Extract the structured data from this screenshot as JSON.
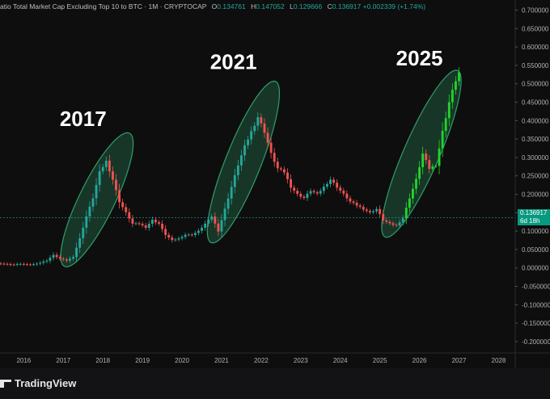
{
  "header": {
    "title": "atio Total Market Cap Excluding Top 10 to BTC · 1M · CRYPTOCAP",
    "open_label": "O",
    "open": "0.134761",
    "high_label": "H",
    "high": "0.147052",
    "low_label": "L",
    "low": "0.129666",
    "close_label": "C",
    "close": "0.136917",
    "change": "+0.002339 (+1.74%)"
  },
  "price_badge": {
    "price": "0.136917",
    "countdown": "6d 18h"
  },
  "brand": {
    "name": "TradingView"
  },
  "colors": {
    "up": "#26a69a",
    "down": "#ef5350",
    "bright_up": "#22d42a",
    "highlight": "#2f9e6a",
    "badge": "#089981"
  },
  "annotations": [
    {
      "label": "2017",
      "year": 2017.5,
      "value": 0.385
    },
    {
      "label": "2021",
      "year": 2021.3,
      "value": 0.54
    },
    {
      "label": "2025",
      "year": 2026.0,
      "value": 0.55
    }
  ],
  "highlight_ellipses": [
    {
      "year_from": 2017.1,
      "year_to": 2018.6,
      "value_from": 0.02,
      "value_to": 0.35
    },
    {
      "year_from": 2020.8,
      "year_to": 2022.3,
      "value_from": 0.085,
      "value_to": 0.49
    },
    {
      "year_from": 2025.2,
      "year_to": 2026.9,
      "value_from": 0.1,
      "value_to": 0.52
    }
  ],
  "chart_data": {
    "type": "candlestick",
    "title": "atio Total Market Cap Excluding Top 10 to BTC",
    "interval": "1M",
    "source": "CRYPTOCAP",
    "x_ticks": [
      "2016",
      "2017",
      "2018",
      "2019",
      "2020",
      "2021",
      "2022",
      "2023",
      "2024",
      "2025",
      "2026",
      "2027",
      "2028"
    ],
    "y_ticks": [
      "0.700000",
      "0.650000",
      "0.600000",
      "0.550000",
      "0.500000",
      "0.450000",
      "0.400000",
      "0.350000",
      "0.300000",
      "0.250000",
      "0.200000",
      "0.150000",
      "0.100000",
      "0.050000",
      "0.000000",
      "-0.050000",
      "-0.100000",
      "-0.150000",
      "-0.200000"
    ],
    "ylim": [
      -0.22,
      0.71
    ],
    "xlim": [
      2015.4,
      2028.4
    ],
    "grid": false,
    "last_price": 0.136917,
    "closes": [
      {
        "t": "2015-06",
        "c": 0.012
      },
      {
        "t": "2015-08",
        "c": 0.01
      },
      {
        "t": "2015-10",
        "c": 0.009
      },
      {
        "t": "2015-12",
        "c": 0.011
      },
      {
        "t": "2016-02",
        "c": 0.009
      },
      {
        "t": "2016-04",
        "c": 0.01
      },
      {
        "t": "2016-06",
        "c": 0.014
      },
      {
        "t": "2016-08",
        "c": 0.02
      },
      {
        "t": "2016-10",
        "c": 0.035
      },
      {
        "t": "2016-12",
        "c": 0.025
      },
      {
        "t": "2017-02",
        "c": 0.02
      },
      {
        "t": "2017-04",
        "c": 0.03
      },
      {
        "t": "2017-06",
        "c": 0.08
      },
      {
        "t": "2017-08",
        "c": 0.14
      },
      {
        "t": "2017-10",
        "c": 0.19
      },
      {
        "t": "2017-12",
        "c": 0.26
      },
      {
        "t": "2018-02",
        "c": 0.29
      },
      {
        "t": "2018-04",
        "c": 0.24
      },
      {
        "t": "2018-06",
        "c": 0.18
      },
      {
        "t": "2018-08",
        "c": 0.15
      },
      {
        "t": "2018-10",
        "c": 0.12
      },
      {
        "t": "2018-12",
        "c": 0.12
      },
      {
        "t": "2019-02",
        "c": 0.11
      },
      {
        "t": "2019-04",
        "c": 0.13
      },
      {
        "t": "2019-06",
        "c": 0.12
      },
      {
        "t": "2019-08",
        "c": 0.09
      },
      {
        "t": "2019-10",
        "c": 0.075
      },
      {
        "t": "2019-12",
        "c": 0.08
      },
      {
        "t": "2020-02",
        "c": 0.09
      },
      {
        "t": "2020-04",
        "c": 0.09
      },
      {
        "t": "2020-06",
        "c": 0.1
      },
      {
        "t": "2020-08",
        "c": 0.12
      },
      {
        "t": "2020-10",
        "c": 0.14
      },
      {
        "t": "2020-12",
        "c": 0.1
      },
      {
        "t": "2021-02",
        "c": 0.16
      },
      {
        "t": "2021-04",
        "c": 0.22
      },
      {
        "t": "2021-06",
        "c": 0.28
      },
      {
        "t": "2021-08",
        "c": 0.33
      },
      {
        "t": "2021-10",
        "c": 0.37
      },
      {
        "t": "2021-12",
        "c": 0.41
      },
      {
        "t": "2022-02",
        "c": 0.37
      },
      {
        "t": "2022-04",
        "c": 0.31
      },
      {
        "t": "2022-06",
        "c": 0.27
      },
      {
        "t": "2022-08",
        "c": 0.26
      },
      {
        "t": "2022-10",
        "c": 0.22
      },
      {
        "t": "2022-12",
        "c": 0.2
      },
      {
        "t": "2023-02",
        "c": 0.19
      },
      {
        "t": "2023-04",
        "c": 0.21
      },
      {
        "t": "2023-06",
        "c": 0.2
      },
      {
        "t": "2023-08",
        "c": 0.22
      },
      {
        "t": "2023-10",
        "c": 0.24
      },
      {
        "t": "2023-12",
        "c": 0.22
      },
      {
        "t": "2024-02",
        "c": 0.2
      },
      {
        "t": "2024-04",
        "c": 0.18
      },
      {
        "t": "2024-06",
        "c": 0.17
      },
      {
        "t": "2024-08",
        "c": 0.16
      },
      {
        "t": "2024-10",
        "c": 0.15
      },
      {
        "t": "2024-12",
        "c": 0.16
      },
      {
        "t": "2025-02",
        "c": 0.13
      },
      {
        "t": "2025-04",
        "c": 0.12
      },
      {
        "t": "2025-06",
        "c": 0.115
      },
      {
        "t": "2025-08",
        "c": 0.135
      },
      {
        "t": "2025-10",
        "c": 0.19
      },
      {
        "t": "2025-12",
        "c": 0.24
      },
      {
        "t": "2026-02",
        "c": 0.31
      },
      {
        "t": "2026-04",
        "c": 0.27
      },
      {
        "t": "2026-06",
        "c": 0.28
      },
      {
        "t": "2026-08",
        "c": 0.37
      },
      {
        "t": "2026-10",
        "c": 0.45
      },
      {
        "t": "2026-12",
        "c": 0.51
      },
      {
        "t": "2027-01",
        "c": 0.53
      }
    ]
  }
}
